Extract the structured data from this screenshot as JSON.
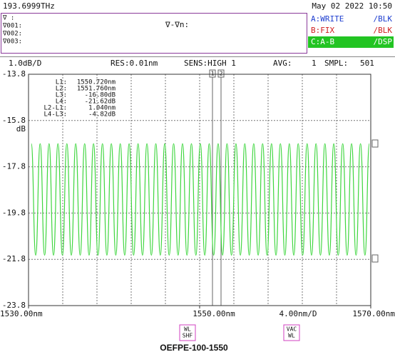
{
  "header": {
    "frequency": "193.6999THz",
    "datetime": "May 02 2022 10:50"
  },
  "trace_panel": {
    "left": [
      "∇  :",
      "∇001:",
      "∇002:",
      "∇003:"
    ],
    "center": "∇-∇n:",
    "traces": [
      {
        "label": "A:WRITE",
        "mode": "/BLK",
        "color": "#1f3fd0"
      },
      {
        "label": "B:FIX",
        "mode": "/BLK",
        "color": "#d01f1f"
      },
      {
        "label": "C:A-B",
        "mode": "/DSP",
        "color": "#ffffff",
        "background": "#22c422"
      }
    ]
  },
  "settings_bar": [
    "1.0dB/D",
    "RES:0.01nm",
    "SENS:HIGH 1",
    "AVG:",
    "1",
    "SMPL:",
    "501"
  ],
  "chart_data": {
    "type": "line",
    "y_unit": "dB",
    "ylim": [
      -23.8,
      -13.8
    ],
    "yticks": [
      -13.8,
      -15.8,
      -17.8,
      -19.8,
      -21.8,
      -23.8
    ],
    "xlim": [
      1530,
      1570
    ],
    "xticks": [
      {
        "value": 1530,
        "label": "1530.00nm"
      },
      {
        "value": 1550,
        "label": "1550.00nm"
      },
      {
        "value": 1570,
        "label": "1570.00nm"
      }
    ],
    "x_scale_label": "4.00nm/D",
    "grid": true,
    "marker_table": [
      [
        "L1:",
        "1550.720nm"
      ],
      [
        "L2:",
        "1551.760nm"
      ],
      [
        "L3:",
        "-16.80dB"
      ],
      [
        "L4:",
        "-21.62dB"
      ],
      [
        "L2-L1:",
        "1.040nm"
      ],
      [
        "L4-L3:",
        "-4.82dB"
      ]
    ],
    "markers": [
      {
        "name": "1",
        "x": 1551.5
      },
      {
        "name": "2",
        "x": 1552.5
      }
    ],
    "series": [
      {
        "name": "C:A-B",
        "color": "#3ed63e",
        "x": [
          1530.32,
          1530.84,
          1531.36,
          1531.88,
          1532.4,
          1532.92,
          1533.44,
          1533.96,
          1534.48,
          1535.0,
          1535.52,
          1536.04,
          1536.56,
          1537.08,
          1537.6,
          1538.12,
          1538.64,
          1539.16,
          1539.68,
          1540.2,
          1540.72,
          1541.24,
          1541.76,
          1542.28,
          1542.8,
          1543.32,
          1543.84,
          1544.36,
          1544.88,
          1545.4,
          1545.92,
          1546.44,
          1546.96,
          1547.48,
          1548.0,
          1548.52,
          1549.04,
          1549.56,
          1550.08,
          1550.6,
          1551.12,
          1551.64,
          1552.16,
          1552.68,
          1553.2,
          1553.72,
          1554.24,
          1554.76,
          1555.28,
          1555.8,
          1556.32,
          1556.84,
          1557.36,
          1557.88,
          1558.4,
          1558.92,
          1559.44,
          1559.96,
          1560.48,
          1561.0,
          1561.52,
          1562.04,
          1562.56,
          1563.08,
          1563.6,
          1564.12,
          1564.64,
          1565.16,
          1565.68,
          1566.2,
          1566.72,
          1567.24,
          1567.76,
          1568.28,
          1568.8,
          1569.32,
          1569.84
        ],
        "values": [
          -16.8,
          -21.62,
          -16.8,
          -21.62,
          -16.8,
          -21.62,
          -16.8,
          -21.62,
          -16.8,
          -21.62,
          -16.8,
          -21.62,
          -16.8,
          -21.62,
          -16.8,
          -21.62,
          -16.8,
          -21.62,
          -16.8,
          -21.62,
          -16.8,
          -21.62,
          -16.8,
          -21.62,
          -16.8,
          -21.62,
          -16.8,
          -21.62,
          -16.8,
          -21.62,
          -16.8,
          -21.62,
          -16.8,
          -21.62,
          -16.8,
          -21.62,
          -16.8,
          -21.62,
          -16.8,
          -21.62,
          -16.8,
          -21.62,
          -16.8,
          -21.62,
          -16.8,
          -21.62,
          -16.8,
          -21.62,
          -16.8,
          -21.62,
          -16.8,
          -21.62,
          -16.8,
          -21.62,
          -16.8,
          -21.62,
          -16.8,
          -21.62,
          -16.8,
          -21.62,
          -16.8,
          -21.62,
          -16.8,
          -21.62,
          -16.8,
          -21.62,
          -16.8,
          -21.62,
          -16.8,
          -21.62,
          -16.8,
          -21.62,
          -16.8,
          -21.62,
          -16.8,
          -21.62,
          -16.8
        ]
      }
    ]
  },
  "softkeys": [
    [
      "WL",
      "SHF"
    ],
    [
      "VAC",
      "WL"
    ]
  ],
  "caption": "OEFPE-100-1550"
}
